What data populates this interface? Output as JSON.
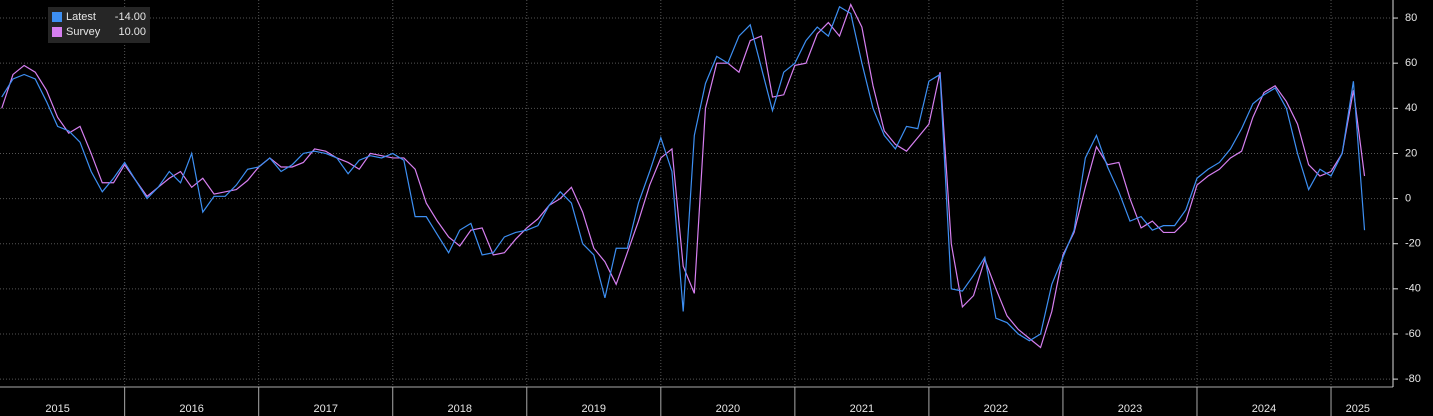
{
  "chart_data": {
    "type": "line",
    "x": [
      2015.083,
      2015.167,
      2015.25,
      2015.333,
      2015.417,
      2015.5,
      2015.583,
      2015.667,
      2015.75,
      2015.833,
      2015.917,
      2016,
      2016.083,
      2016.167,
      2016.25,
      2016.333,
      2016.417,
      2016.5,
      2016.583,
      2016.667,
      2016.75,
      2016.833,
      2016.917,
      2017,
      2017.083,
      2017.167,
      2017.25,
      2017.333,
      2017.417,
      2017.5,
      2017.583,
      2017.667,
      2017.75,
      2017.833,
      2017.917,
      2018,
      2018.083,
      2018.167,
      2018.25,
      2018.333,
      2018.417,
      2018.5,
      2018.583,
      2018.667,
      2018.75,
      2018.833,
      2018.917,
      2019,
      2019.083,
      2019.167,
      2019.25,
      2019.333,
      2019.417,
      2019.5,
      2019.583,
      2019.667,
      2019.75,
      2019.833,
      2019.917,
      2020,
      2020.083,
      2020.167,
      2020.25,
      2020.333,
      2020.417,
      2020.5,
      2020.583,
      2020.667,
      2020.75,
      2020.833,
      2020.917,
      2021,
      2021.083,
      2021.167,
      2021.25,
      2021.333,
      2021.417,
      2021.5,
      2021.583,
      2021.667,
      2021.75,
      2021.833,
      2021.917,
      2022,
      2022.083,
      2022.167,
      2022.25,
      2022.333,
      2022.417,
      2022.5,
      2022.583,
      2022.667,
      2022.75,
      2022.833,
      2022.917,
      2023,
      2023.083,
      2023.167,
      2023.25,
      2023.333,
      2023.417,
      2023.5,
      2023.583,
      2023.667,
      2023.75,
      2023.833,
      2023.917,
      2024,
      2024.083,
      2024.167,
      2024.25,
      2024.333,
      2024.417,
      2024.5,
      2024.583,
      2024.667,
      2024.75,
      2024.833,
      2024.917,
      2025,
      2025.083,
      2025.167,
      2025.25
    ],
    "series": [
      {
        "name": "Latest",
        "last_label": "-14.00",
        "color": "#3d8ff2",
        "values": [
          45,
          53,
          55,
          53,
          43,
          32,
          30,
          25,
          12,
          3,
          9,
          16,
          8,
          0,
          5,
          12,
          7,
          20,
          -6,
          1,
          1,
          6,
          13,
          14,
          18,
          12,
          15,
          20,
          21,
          20,
          18,
          11,
          17,
          19,
          18,
          20,
          17,
          -8,
          -8,
          -16,
          -24,
          -14,
          -11,
          -25,
          -24,
          -17,
          -15,
          -14,
          -12,
          -3,
          3,
          -2,
          -20,
          -25,
          -44,
          -22,
          -22,
          -2,
          12,
          27,
          12,
          -50,
          28,
          51,
          63,
          60,
          72,
          77,
          58,
          39,
          56,
          60,
          70,
          76,
          72,
          85,
          82,
          60,
          40,
          28,
          22,
          32,
          31,
          52,
          55,
          -40,
          -41,
          -34,
          -26,
          -53,
          -55,
          -60,
          -63,
          -60,
          -38,
          -26,
          -14,
          18,
          28,
          14,
          3,
          -10,
          -8,
          -14,
          -12,
          -12,
          -5,
          9,
          13,
          16,
          22,
          31,
          42,
          46,
          49,
          40,
          20,
          4,
          13,
          10,
          20,
          52,
          -14
        ]
      },
      {
        "name": "Survey",
        "last_label": "10.00",
        "color": "#d67ff0",
        "values": [
          40,
          55,
          59,
          56,
          48,
          36,
          29,
          32,
          20,
          7,
          7,
          15,
          8,
          1,
          5,
          9,
          12,
          5,
          9,
          2,
          3,
          4,
          8,
          14,
          18,
          14,
          14,
          16,
          22,
          21,
          18,
          16,
          13,
          20,
          19,
          18,
          18,
          13,
          -2,
          -10,
          -17,
          -21,
          -14,
          -13,
          -25,
          -24,
          -18,
          -13,
          -9,
          -3,
          0,
          5,
          -6,
          -22,
          -28,
          -38,
          -24,
          -10,
          6,
          18,
          22,
          -30,
          -42,
          40,
          60,
          60,
          56,
          70,
          72,
          45,
          46,
          59,
          60,
          73,
          78,
          72,
          86,
          76,
          50,
          30,
          24,
          21,
          27,
          33,
          56,
          -20,
          -48,
          -43,
          -27,
          -40,
          -52,
          -58,
          -62,
          -66,
          -50,
          -25,
          -15,
          5,
          23,
          15,
          16,
          0,
          -13,
          -10,
          -15,
          -15,
          -10,
          6,
          10,
          13,
          18,
          21,
          36,
          47,
          50,
          43,
          33,
          15,
          10,
          12,
          20,
          48,
          10
        ]
      }
    ],
    "xlim": [
      2015.07,
      2025.44
    ],
    "xticks": [
      {
        "value": 2015.5,
        "label": "2015"
      },
      {
        "value": 2016.5,
        "label": "2016"
      },
      {
        "value": 2017.5,
        "label": "2017"
      },
      {
        "value": 2018.5,
        "label": "2018"
      },
      {
        "value": 2019.5,
        "label": "2019"
      },
      {
        "value": 2020.5,
        "label": "2020"
      },
      {
        "value": 2021.5,
        "label": "2021"
      },
      {
        "value": 2022.5,
        "label": "2022"
      },
      {
        "value": 2023.5,
        "label": "2023"
      },
      {
        "value": 2024.5,
        "label": "2024"
      },
      {
        "value": 2025.2,
        "label": "2025"
      }
    ],
    "ylim": [
      -83.5,
      88
    ],
    "yticks": [
      80,
      60,
      40,
      20,
      0,
      -20,
      -40,
      -60,
      -80
    ],
    "grid": true
  }
}
